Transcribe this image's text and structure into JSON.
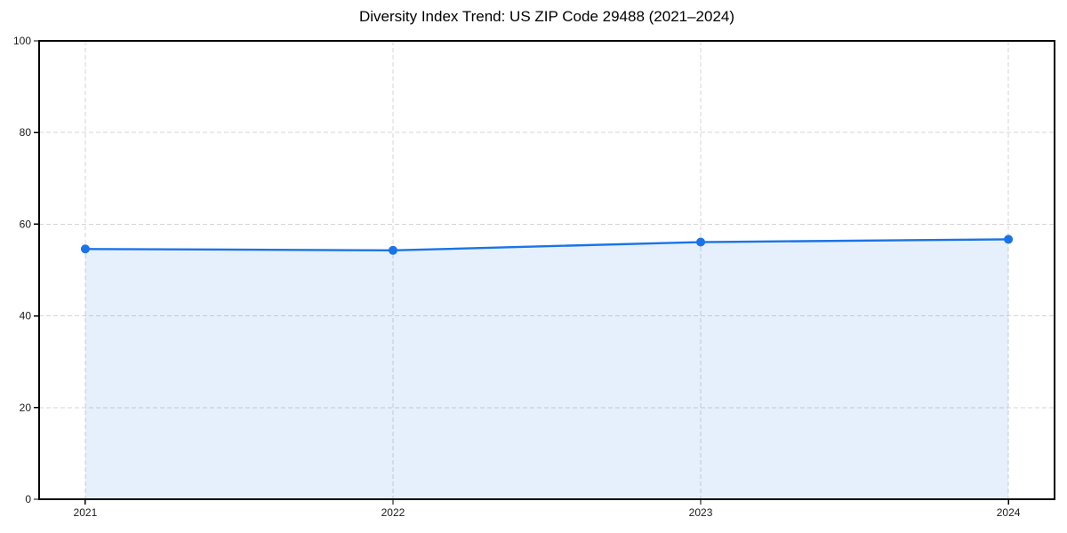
{
  "chart_data": {
    "type": "area",
    "title": "Diversity Index Trend: US ZIP Code 29488 (2021–2024)",
    "categories": [
      "2021",
      "2022",
      "2023",
      "2024"
    ],
    "x": [
      2021,
      2022,
      2023,
      2024
    ],
    "series": [
      {
        "name": "Diversity Index",
        "values": [
          54.6,
          54.3,
          56.1,
          56.7
        ]
      }
    ],
    "xlabel": "",
    "ylabel": "",
    "ylim": [
      0,
      100
    ],
    "yticks": [
      0,
      20,
      40,
      60,
      80,
      100
    ],
    "grid": true,
    "grid_style": "dashed",
    "legend_position": "none",
    "marker": "circle",
    "colors": {
      "line": "#1a73e8",
      "marker": "#1a73e8",
      "fill": "rgba(26,115,232,0.11)",
      "grid": "#d4d4d4",
      "spine": "#000000",
      "tick_text": "#1a1a1a",
      "background": "#ffffff"
    }
  }
}
